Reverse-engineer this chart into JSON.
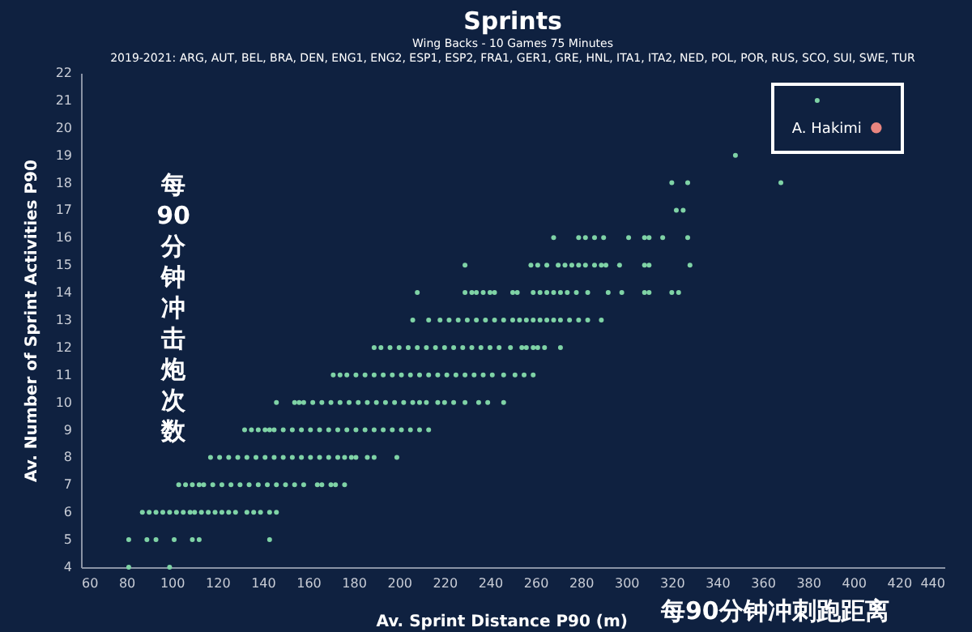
{
  "chart_data": {
    "type": "scatter",
    "title": "Sprints",
    "subtitle": "Wing Backs - 10 Games 75 Minutes\n2019-2021: ARG, AUT, BEL, BRA, DEN, ENG1, ENG2, ESP1, ESP2, FRA1, GER1, GRE, HNL, ITA1, ITA2, NED, POL, POR, RUS, SCO, SUI, SWE, TUR",
    "xlabel": "Av. Sprint Distance P90 (m)",
    "ylabel": "Av. Number of Sprint Activities P90",
    "annotations": [
      "每90分钟冲击炮次数",
      "每90分钟冲刺跑距离"
    ],
    "xlim": [
      60,
      440
    ],
    "ylim": [
      4,
      22
    ],
    "xticks": [
      60,
      80,
      100,
      120,
      140,
      160,
      180,
      200,
      220,
      240,
      260,
      280,
      300,
      320,
      340,
      360,
      380,
      400,
      420,
      440
    ],
    "yticks": [
      4,
      5,
      6,
      7,
      8,
      9,
      10,
      11,
      12,
      13,
      14,
      15,
      16,
      17,
      18,
      19,
      20,
      21,
      22
    ],
    "grid": false,
    "marker": "circle",
    "series": [
      {
        "color": "#7fd3a6",
        "x": [
          81,
          99,
          81,
          89,
          93,
          101,
          109,
          112,
          143,
          87,
          90,
          93,
          96,
          99,
          102,
          105,
          108,
          110,
          113,
          116,
          119,
          122,
          125,
          128,
          133,
          136,
          139,
          143,
          146,
          103,
          106,
          109,
          112,
          114,
          118,
          122,
          126,
          130,
          134,
          138,
          142,
          146,
          150,
          154,
          158,
          164,
          166,
          170,
          172,
          176,
          117,
          121,
          125,
          129,
          133,
          137,
          141,
          145,
          149,
          153,
          157,
          161,
          165,
          169,
          173,
          176,
          179,
          181,
          186,
          189,
          199,
          132,
          135,
          138,
          141,
          143,
          145,
          149,
          153,
          157,
          161,
          165,
          169,
          173,
          177,
          181,
          185,
          189,
          193,
          197,
          201,
          205,
          209,
          213,
          146,
          154,
          156,
          158,
          162,
          166,
          170,
          174,
          178,
          182,
          186,
          190,
          194,
          198,
          202,
          206,
          209,
          212,
          217,
          220,
          224,
          229,
          235,
          239,
          246,
          171,
          174,
          177,
          181,
          185,
          189,
          193,
          197,
          201,
          205,
          209,
          213,
          217,
          221,
          225,
          229,
          233,
          237,
          241,
          246,
          251,
          255,
          259,
          189,
          192,
          196,
          200,
          204,
          208,
          212,
          216,
          220,
          224,
          228,
          232,
          236,
          240,
          244,
          249,
          254,
          256,
          259,
          261,
          264,
          271,
          206,
          213,
          218,
          222,
          226,
          230,
          234,
          238,
          242,
          246,
          250,
          253,
          256,
          259,
          262,
          265,
          268,
          271,
          275,
          279,
          283,
          289,
          208,
          229,
          232,
          234,
          237,
          240,
          242,
          250,
          252,
          259,
          262,
          265,
          268,
          271,
          274,
          278,
          283,
          292,
          298,
          308,
          310,
          320,
          323,
          229,
          258,
          261,
          265,
          270,
          273,
          276,
          279,
          282,
          286,
          289,
          291,
          297,
          308,
          310,
          328,
          268,
          279,
          282,
          286,
          290,
          301,
          308,
          310,
          316,
          327,
          322,
          325,
          320,
          327,
          368,
          348,
          384
        ],
        "values": [
          4,
          4,
          5,
          5,
          5,
          5,
          5,
          5,
          5,
          6,
          6,
          6,
          6,
          6,
          6,
          6,
          6,
          6,
          6,
          6,
          6,
          6,
          6,
          6,
          6,
          6,
          6,
          6,
          6,
          7,
          7,
          7,
          7,
          7,
          7,
          7,
          7,
          7,
          7,
          7,
          7,
          7,
          7,
          7,
          7,
          7,
          7,
          7,
          7,
          7,
          8,
          8,
          8,
          8,
          8,
          8,
          8,
          8,
          8,
          8,
          8,
          8,
          8,
          8,
          8,
          8,
          8,
          8,
          8,
          8,
          8,
          9,
          9,
          9,
          9,
          9,
          9,
          9,
          9,
          9,
          9,
          9,
          9,
          9,
          9,
          9,
          9,
          9,
          9,
          9,
          9,
          9,
          9,
          9,
          10,
          10,
          10,
          10,
          10,
          10,
          10,
          10,
          10,
          10,
          10,
          10,
          10,
          10,
          10,
          10,
          10,
          10,
          10,
          10,
          10,
          10,
          10,
          10,
          10,
          11,
          11,
          11,
          11,
          11,
          11,
          11,
          11,
          11,
          11,
          11,
          11,
          11,
          11,
          11,
          11,
          11,
          11,
          11,
          11,
          11,
          11,
          11,
          12,
          12,
          12,
          12,
          12,
          12,
          12,
          12,
          12,
          12,
          12,
          12,
          12,
          12,
          12,
          12,
          12,
          12,
          12,
          12,
          12,
          12,
          13,
          13,
          13,
          13,
          13,
          13,
          13,
          13,
          13,
          13,
          13,
          13,
          13,
          13,
          13,
          13,
          13,
          13,
          13,
          13,
          13,
          13,
          14,
          14,
          14,
          14,
          14,
          14,
          14,
          14,
          14,
          14,
          14,
          14,
          14,
          14,
          14,
          14,
          14,
          14,
          14,
          14,
          14,
          14,
          14,
          15,
          15,
          15,
          15,
          15,
          15,
          15,
          15,
          15,
          15,
          15,
          15,
          15,
          15,
          15,
          15,
          16,
          16,
          16,
          16,
          16,
          16,
          16,
          16,
          16,
          16,
          17,
          17,
          18,
          18,
          18,
          19,
          21
        ]
      },
      {
        "name": "A. Hakimi",
        "color": "#e8857f",
        "x": [
          410
        ],
        "values": [
          20
        ]
      }
    ]
  }
}
